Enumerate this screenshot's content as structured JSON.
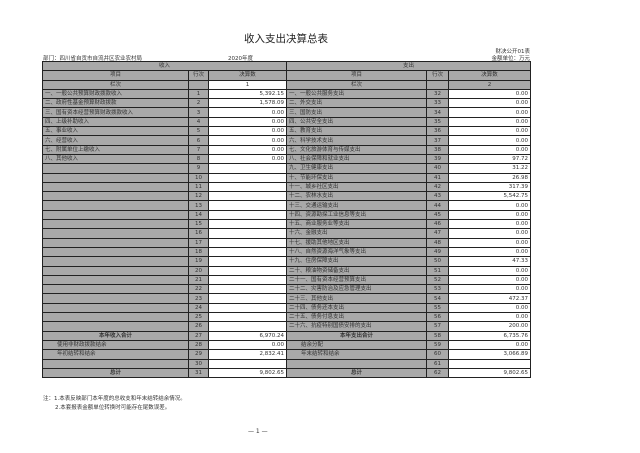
{
  "title": "收入支出决算总表",
  "department": "部门：四川省自贡市自流井区农业农村局",
  "year": "2020年度",
  "form_no": "财决公开01表",
  "unit": "金额单位：万元",
  "header": {
    "income": "收入",
    "expense": "支出",
    "item": "项目",
    "row_no": "行次",
    "amount": "决算数",
    "col_label": "栏次",
    "col1": "1",
    "col2": "2"
  },
  "income_rows": [
    {
      "item": "一、一般公共预算财政拨款收入",
      "no": "1",
      "value": "5,392.15"
    },
    {
      "item": "二、政府性基金预算财政拨款",
      "no": "2",
      "value": "1,578.09"
    },
    {
      "item": "三、国有资本经营预算财政拨款收入",
      "no": "3",
      "value": "0.00"
    },
    {
      "item": "四、上级补助收入",
      "no": "4",
      "value": "0.00"
    },
    {
      "item": "五、事业收入",
      "no": "5",
      "value": "0.00"
    },
    {
      "item": "六、经营收入",
      "no": "6",
      "value": "0.00"
    },
    {
      "item": "七、附属单位上缴收入",
      "no": "7",
      "value": "0.00"
    },
    {
      "item": "八、其他收入",
      "no": "8",
      "value": "0.00"
    },
    {
      "item": "",
      "no": "9",
      "value": ""
    },
    {
      "item": "",
      "no": "10",
      "value": ""
    },
    {
      "item": "",
      "no": "11",
      "value": ""
    },
    {
      "item": "",
      "no": "12",
      "value": ""
    },
    {
      "item": "",
      "no": "13",
      "value": ""
    },
    {
      "item": "",
      "no": "14",
      "value": ""
    },
    {
      "item": "",
      "no": "15",
      "value": ""
    },
    {
      "item": "",
      "no": "16",
      "value": ""
    },
    {
      "item": "",
      "no": "17",
      "value": ""
    },
    {
      "item": "",
      "no": "18",
      "value": ""
    },
    {
      "item": "",
      "no": "19",
      "value": ""
    },
    {
      "item": "",
      "no": "20",
      "value": ""
    },
    {
      "item": "",
      "no": "21",
      "value": ""
    },
    {
      "item": "",
      "no": "22",
      "value": ""
    },
    {
      "item": "",
      "no": "23",
      "value": ""
    },
    {
      "item": "",
      "no": "24",
      "value": ""
    },
    {
      "item": "",
      "no": "25",
      "value": ""
    },
    {
      "item": "",
      "no": "26",
      "value": ""
    },
    {
      "item": "本年收入合计",
      "no": "27",
      "value": "6,970.24",
      "style": "bold"
    },
    {
      "item": "使用非财政拨款结余",
      "no": "28",
      "value": "0.00",
      "style": "indent"
    },
    {
      "item": "年初结转和结余",
      "no": "29",
      "value": "2,832.41",
      "style": "indent"
    },
    {
      "item": "",
      "no": "30",
      "value": ""
    },
    {
      "item": "总计",
      "no": "31",
      "value": "9,802.65",
      "style": "bold"
    }
  ],
  "expense_rows": [
    {
      "item": "一、一般公共服务支出",
      "no": "32",
      "value": "0.00"
    },
    {
      "item": "二、外交支出",
      "no": "33",
      "value": "0.00"
    },
    {
      "item": "三、国防支出",
      "no": "34",
      "value": "0.00"
    },
    {
      "item": "四、公共安全支出",
      "no": "35",
      "value": "0.00"
    },
    {
      "item": "五、教育支出",
      "no": "36",
      "value": "0.00"
    },
    {
      "item": "六、科学技术支出",
      "no": "37",
      "value": "0.00"
    },
    {
      "item": "七、文化旅游体育与传媒支出",
      "no": "38",
      "value": "0.00"
    },
    {
      "item": "八、社会保障和就业支出",
      "no": "39",
      "value": "97.72"
    },
    {
      "item": "九、卫生健康支出",
      "no": "40",
      "value": "31.22"
    },
    {
      "item": "十、节能环保支出",
      "no": "41",
      "value": "26.98"
    },
    {
      "item": "十一、城乡社区支出",
      "no": "42",
      "value": "317.39"
    },
    {
      "item": "十二、农林水支出",
      "no": "43",
      "value": "5,542.75"
    },
    {
      "item": "十三、交通运输支出",
      "no": "44",
      "value": "0.00"
    },
    {
      "item": "十四、资源勘探工业信息等支出",
      "no": "45",
      "value": "0.00"
    },
    {
      "item": "十五、商业服务业等支出",
      "no": "46",
      "value": "0.00"
    },
    {
      "item": "十六、金融支出",
      "no": "47",
      "value": "0.00"
    },
    {
      "item": "十七、援助其他地区支出",
      "no": "48",
      "value": "0.00"
    },
    {
      "item": "十八、自然资源海洋气象等支出",
      "no": "49",
      "value": "0.00"
    },
    {
      "item": "十九、住房保障支出",
      "no": "50",
      "value": "47.33"
    },
    {
      "item": "二十、粮油物资储备支出",
      "no": "51",
      "value": "0.00"
    },
    {
      "item": "二十一、国有资本经营预算支出",
      "no": "52",
      "value": "0.00"
    },
    {
      "item": "二十二、灾害防治及应急管理支出",
      "no": "53",
      "value": "0.00"
    },
    {
      "item": "二十三、其他支出",
      "no": "54",
      "value": "472.37"
    },
    {
      "item": "二十四、债务还本支出",
      "no": "55",
      "value": "0.00"
    },
    {
      "item": "二十五、债务付息支出",
      "no": "56",
      "value": "0.00"
    },
    {
      "item": "二十六、抗疫特别国债安排的支出",
      "no": "57",
      "value": "200.00"
    },
    {
      "item": "本年支出合计",
      "no": "58",
      "value": "6,735.76",
      "style": "bold"
    },
    {
      "item": "结余分配",
      "no": "59",
      "value": "0.00",
      "style": "indent"
    },
    {
      "item": "年末结转和结余",
      "no": "60",
      "value": "3,066.89",
      "style": "indent"
    },
    {
      "item": "",
      "no": "61",
      "value": ""
    },
    {
      "item": "总计",
      "no": "62",
      "value": "9,802.65",
      "style": "bold"
    }
  ],
  "notes": [
    "注：1.本表反映部门本年度的总收支和年末结转结余情况。",
    "2.本套报表金额单位转换时可能存在尾数误差。"
  ],
  "page_no": "— 1 —"
}
